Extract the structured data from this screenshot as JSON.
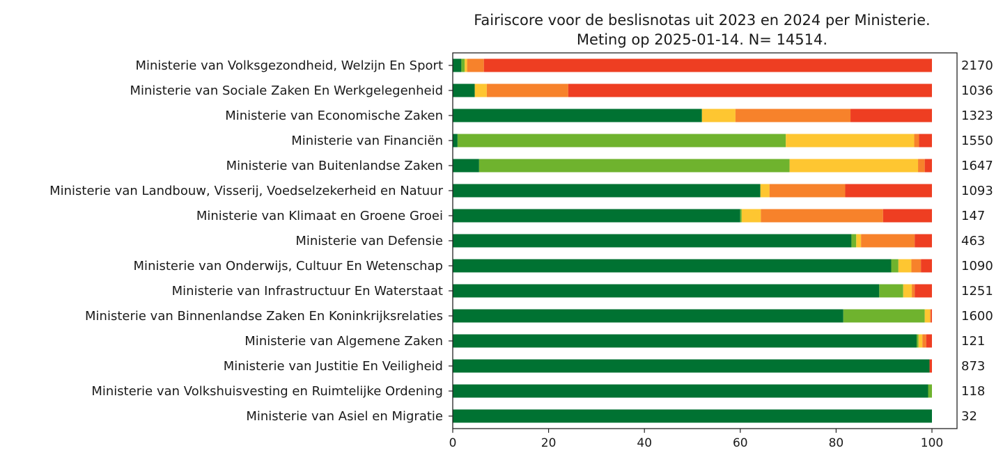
{
  "chart_data": {
    "type": "bar",
    "orientation": "horizontal",
    "stacked": true,
    "title_lines": [
      "Fairiscore voor de beslisnotas uit 2023 en 2024 per Ministerie.",
      "Meting op 2025-01-14. N= 14514."
    ],
    "xlabel": "",
    "ylabel": "",
    "xlim": [
      0,
      100
    ],
    "xticks": [
      0,
      20,
      40,
      60,
      80,
      100
    ],
    "grid": false,
    "legend": "none",
    "categories": [
      "Ministerie van Volksgezondheid, Welzijn En Sport",
      "Ministerie van Sociale Zaken En Werkgelegenheid",
      "Ministerie van Economische Zaken",
      "Ministerie van Financiën",
      "Ministerie van Buitenlandse Zaken",
      "Ministerie van Landbouw, Visserij, Voedselzekerheid en Natuur",
      "Ministerie van Klimaat en Groene Groei",
      "Ministerie van Defensie",
      "Ministerie van Onderwijs, Cultuur En Wetenschap",
      "Ministerie van Infrastructuur En Waterstaat",
      "Ministerie van Binnenlandse Zaken En Koninkrijksrelaties",
      "Ministerie van Algemene Zaken",
      "Ministerie van Justitie En Veiligheid",
      "Ministerie van Volkshuisvesting en Ruimtelijke Ordening",
      "Ministerie van Asiel en Migratie"
    ],
    "counts": [
      "2170",
      "1036",
      "1323",
      "1550",
      "1647",
      "1093",
      "147",
      "463",
      "1090",
      "1251",
      "1600",
      "121",
      "873",
      "118",
      "32"
    ],
    "series": [
      {
        "color": "#007232",
        "values": [
          1.8,
          4.6,
          52.0,
          1.0,
          5.5,
          64.2,
          60.0,
          83.2,
          91.5,
          89.0,
          81.5,
          96.8,
          99.5,
          99.2,
          100
        ]
      },
      {
        "color": "#6fb32e",
        "values": [
          0.7,
          0.0,
          0.0,
          68.5,
          64.8,
          0.0,
          0.3,
          1.0,
          1.5,
          5.0,
          17.0,
          0.4,
          0.0,
          0.8,
          0
        ]
      },
      {
        "color": "#fec631",
        "values": [
          0.5,
          2.5,
          7.0,
          26.8,
          26.8,
          1.9,
          4.0,
          1.0,
          2.7,
          1.8,
          1.1,
          0.8,
          0.0,
          0.0,
          0
        ]
      },
      {
        "color": "#f7822b",
        "values": [
          3.5,
          17.0,
          24.0,
          1.0,
          1.4,
          15.8,
          25.5,
          11.2,
          2.0,
          0.6,
          0.2,
          0.8,
          0.0,
          0.0,
          0
        ]
      },
      {
        "color": "#ee3e22",
        "values": [
          93.5,
          75.9,
          17.0,
          2.7,
          1.5,
          18.1,
          10.2,
          3.6,
          2.3,
          3.6,
          0.2,
          1.2,
          0.5,
          0.0,
          0
        ]
      }
    ]
  }
}
